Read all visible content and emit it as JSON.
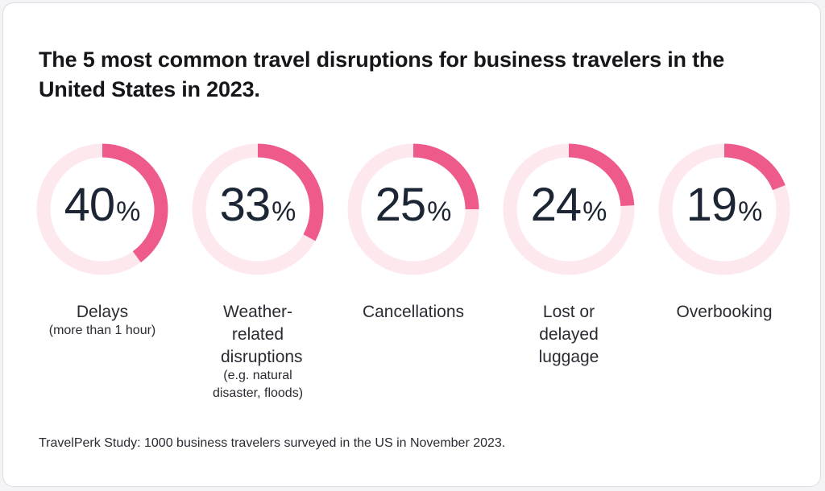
{
  "colors": {
    "accent": "#ee5a8a",
    "track": "#fde8ee",
    "text": "#1c2533"
  },
  "chart_data": {
    "type": "pie",
    "title": "The 5 most common travel disruptions for business travelers in the United States in 2023.",
    "unit": "%",
    "items": [
      {
        "value": 40,
        "label": "Delays",
        "sublabel": "(more than 1 hour)"
      },
      {
        "value": 33,
        "label": "Weather-related disruptions",
        "sublabel": "(e.g. natural disaster, floods)"
      },
      {
        "value": 25,
        "label": "Cancellations",
        "sublabel": ""
      },
      {
        "value": 24,
        "label": "Lost or delayed luggage",
        "sublabel": ""
      },
      {
        "value": 19,
        "label": "Overbooking",
        "sublabel": ""
      }
    ],
    "source": "TravelPerk Study: 1000 business travelers surveyed in the US in November 2023."
  }
}
